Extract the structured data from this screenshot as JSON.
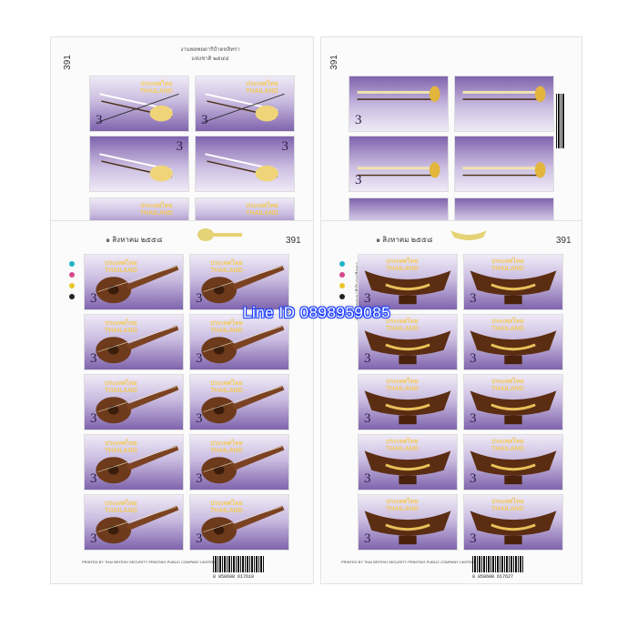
{
  "sheets": {
    "top_left": {
      "sheet_number": "391",
      "header": "งานพลพยตาริปำตหลิทรา\nแห่งชาติ ๒๕๔๔"
    },
    "top_right": {
      "sheet_number": "391"
    },
    "bottom_left": {
      "sheet_number": "391",
      "date": "๑ สิงหาคม ๒๕๕๘",
      "barcode": "8 850608 617610",
      "footer": "PRINTED BY THAI BRITISH SECURITY PRINTING PUBLIC COMPANY LIMITED"
    },
    "bottom_right": {
      "sheet_number": "391",
      "date": "๑ สิงหาคม ๒๕๕๘",
      "barcode": "8 850608 617627",
      "footer": "PRINTED BY THAI BRITISH SECURITY PRINTING PUBLIC COMPANY LIMITED"
    }
  },
  "stamp": {
    "country_thai": "ประเทศไทย",
    "country_en": "THAILAND",
    "value": "3"
  },
  "watermark": "Line ID 0898959085",
  "registration_colors": [
    "#1fb3c9",
    "#d34a8c",
    "#e8c62b",
    "#222222"
  ]
}
